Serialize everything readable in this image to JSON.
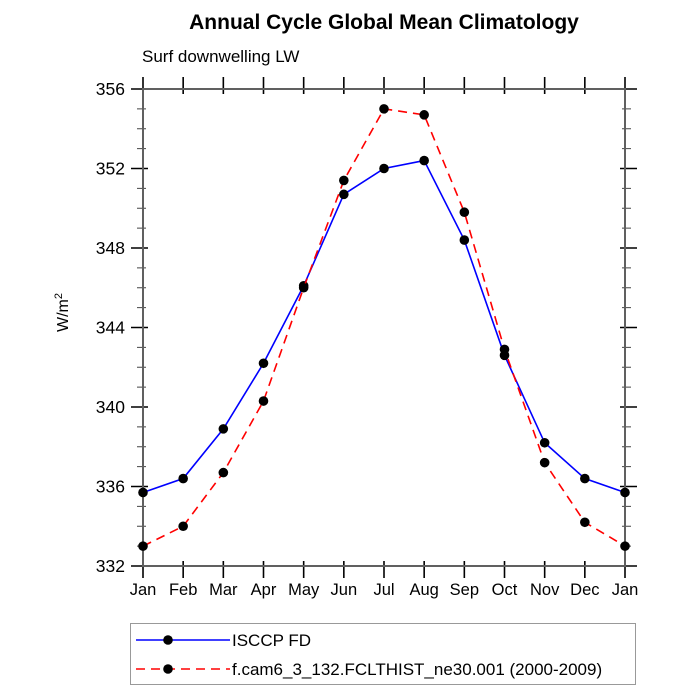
{
  "chart_data": {
    "type": "line",
    "title": "Annual Cycle Global Mean Climatology",
    "subtitle": "Surf downwelling LW",
    "ylabel": {
      "base": "W/m",
      "exp": "2"
    },
    "x_categories": [
      "Jan",
      "Feb",
      "Mar",
      "Apr",
      "May",
      "Jun",
      "Jul",
      "Aug",
      "Sep",
      "Oct",
      "Nov",
      "Dec",
      "Jan"
    ],
    "ylim": [
      332,
      356
    ],
    "y_major_ticks": [
      332,
      336,
      340,
      344,
      348,
      352,
      356
    ],
    "y_minor_step": 1,
    "grid": "off",
    "legend_position": "bottom-left-boxed",
    "frame_color": "#606060",
    "tick_color": "#000000",
    "series": [
      {
        "name": "ISCCP FD",
        "color": "#0000ff",
        "style": "solid",
        "marker_color": "#000000",
        "values": [
          335.7,
          336.4,
          338.9,
          342.2,
          346.1,
          350.7,
          352.0,
          352.4,
          348.4,
          342.6,
          338.2,
          336.4,
          335.7
        ]
      },
      {
        "name": "f.cam6_3_132.FCLTHIST_ne30.001 (2000-2009)",
        "color": "#ff0000",
        "style": "dashed",
        "marker_color": "#000000",
        "values": [
          333.0,
          334.0,
          336.7,
          340.3,
          346.0,
          351.4,
          355.0,
          354.7,
          349.8,
          342.9,
          337.2,
          334.2,
          333.0
        ]
      }
    ]
  }
}
